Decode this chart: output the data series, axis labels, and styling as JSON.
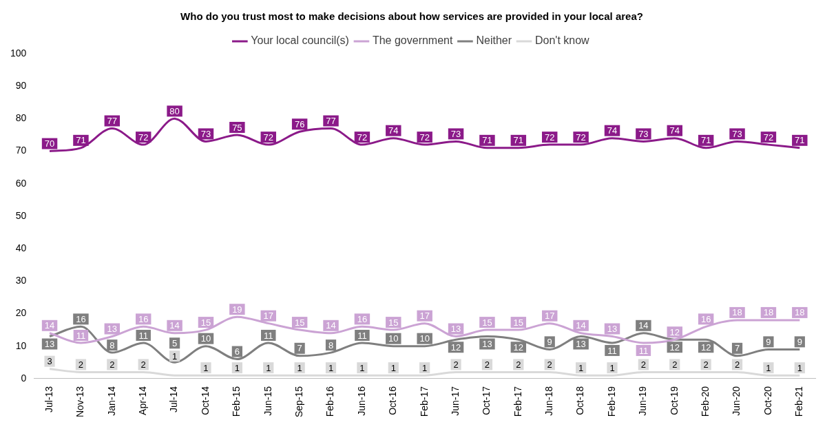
{
  "chart_data": {
    "type": "line",
    "title": "Who do you trust most to make decisions about how services are provided in your local area?",
    "categories": [
      "Jul-13",
      "Nov-13",
      "Jan-14",
      "Apr-14",
      "Jul-14",
      "Oct-14",
      "Feb-15",
      "Jun-15",
      "Sep-15",
      "Feb-16",
      "Jun-16",
      "Oct-16",
      "Feb-17",
      "Jun-17",
      "Oct-17",
      "Feb-17",
      "Jun-18",
      "Oct-18",
      "Feb-19",
      "Jun-19",
      "Oct-19",
      "Feb-20",
      "Jun-20",
      "Oct-20",
      "Feb-21"
    ],
    "series": [
      {
        "name": "Your local council(s)",
        "color": "#8b1a89",
        "values": [
          70,
          71,
          77,
          72,
          80,
          73,
          75,
          72,
          76,
          77,
          72,
          74,
          72,
          73,
          71,
          71,
          72,
          72,
          74,
          73,
          74,
          71,
          73,
          72,
          71
        ]
      },
      {
        "name": "The government",
        "color": "#cba3d4",
        "values": [
          14,
          11,
          13,
          16,
          14,
          15,
          19,
          17,
          15,
          14,
          16,
          15,
          17,
          13,
          15,
          15,
          17,
          14,
          13,
          11,
          12,
          16,
          18,
          18,
          18
        ]
      },
      {
        "name": "Neither",
        "color": "#7f7f7f",
        "values": [
          13,
          16,
          8,
          11,
          5,
          10,
          6,
          11,
          7,
          8,
          11,
          10,
          10,
          12,
          13,
          12,
          9,
          13,
          11,
          14,
          12,
          12,
          7,
          9,
          9
        ]
      },
      {
        "name": "Don't know",
        "color": "#d9d9d9",
        "values": [
          3,
          2,
          2,
          2,
          1,
          1,
          1,
          1,
          1,
          1,
          1,
          1,
          1,
          2,
          2,
          2,
          2,
          1,
          1,
          2,
          2,
          2,
          2,
          1,
          1
        ]
      }
    ],
    "ylim": [
      0,
      100
    ],
    "yticks": [
      0,
      10,
      20,
      30,
      40,
      50,
      60,
      70,
      80,
      90,
      100
    ],
    "grid": false,
    "legend": "top",
    "marker": "none",
    "line_style": "solid",
    "data_labels": true
  }
}
